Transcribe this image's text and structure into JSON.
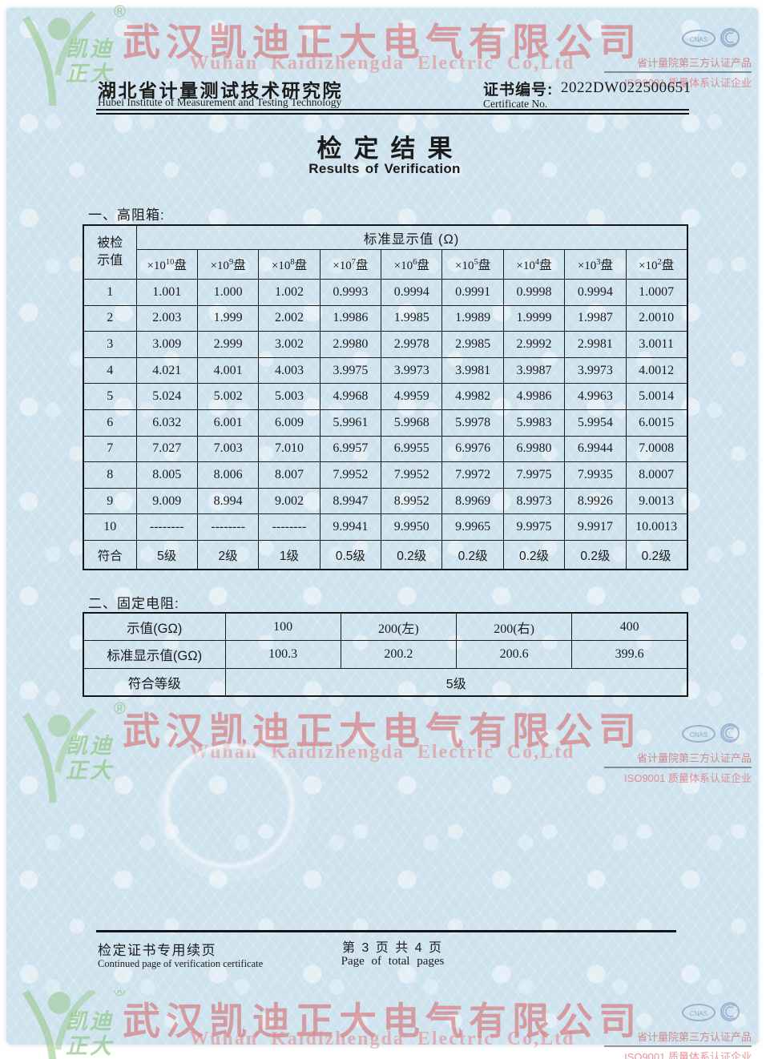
{
  "watermark": {
    "company_cn": "武汉凯迪正大电气有限公司",
    "company_en": "Wuhan Kaidizhengda Electric Co,Ltd",
    "logo_text_line1": "凯迪",
    "logo_text_line2": "正大",
    "reg_mark": "®",
    "badge_line1": "省计量院第三方认证产品",
    "badge_line2": "ISO9001 质量体系认证企业",
    "badge_logo1": "CNAS",
    "badge_logo2": "CCC"
  },
  "header": {
    "institute_cn": "湖北省计量测试技术研究院",
    "institute_en": "Hubei Institute of Measurement and Testing Technology",
    "cert_label_cn": "证书编号:",
    "cert_number": "2022DW022500651",
    "cert_label_en": "Certificate No."
  },
  "title": {
    "cn": "检定结果",
    "en": "Results of Verification"
  },
  "section1": {
    "label": "一、高阻箱:",
    "table": {
      "stub_line1": "被检",
      "stub_line2": "示值",
      "span_header": "标准显示值 (Ω)",
      "dial_base": "×10",
      "dial_suffix": "盘",
      "dial_exponents": [
        "10",
        "9",
        "8",
        "7",
        "6",
        "5",
        "4",
        "3",
        "2"
      ],
      "rows": [
        {
          "label": "1",
          "values": [
            "1.001",
            "1.000",
            "1.002",
            "0.9993",
            "0.9994",
            "0.9991",
            "0.9998",
            "0.9994",
            "1.0007"
          ]
        },
        {
          "label": "2",
          "values": [
            "2.003",
            "1.999",
            "2.002",
            "1.9986",
            "1.9985",
            "1.9989",
            "1.9999",
            "1.9987",
            "2.0010"
          ]
        },
        {
          "label": "3",
          "values": [
            "3.009",
            "2.999",
            "3.002",
            "2.9980",
            "2.9978",
            "2.9985",
            "2.9992",
            "2.9981",
            "3.0011"
          ]
        },
        {
          "label": "4",
          "values": [
            "4.021",
            "4.001",
            "4.003",
            "3.9975",
            "3.9973",
            "3.9981",
            "3.9987",
            "3.9973",
            "4.0012"
          ]
        },
        {
          "label": "5",
          "values": [
            "5.024",
            "5.002",
            "5.003",
            "4.9968",
            "4.9959",
            "4.9982",
            "4.9986",
            "4.9963",
            "5.0014"
          ]
        },
        {
          "label": "6",
          "values": [
            "6.032",
            "6.001",
            "6.009",
            "5.9961",
            "5.9968",
            "5.9978",
            "5.9983",
            "5.9954",
            "6.0015"
          ]
        },
        {
          "label": "7",
          "values": [
            "7.027",
            "7.003",
            "7.010",
            "6.9957",
            "6.9955",
            "6.9976",
            "6.9980",
            "6.9944",
            "7.0008"
          ]
        },
        {
          "label": "8",
          "values": [
            "8.005",
            "8.006",
            "8.007",
            "7.9952",
            "7.9952",
            "7.9972",
            "7.9975",
            "7.9935",
            "8.0007"
          ]
        },
        {
          "label": "9",
          "values": [
            "9.009",
            "8.994",
            "9.002",
            "8.9947",
            "8.9952",
            "8.9969",
            "8.9973",
            "8.9926",
            "9.0013"
          ]
        },
        {
          "label": "10",
          "values": [
            "--------",
            "--------",
            "--------",
            "9.9941",
            "9.9950",
            "9.9965",
            "9.9975",
            "9.9917",
            "10.0013"
          ]
        },
        {
          "label": "符合",
          "grade_row": true,
          "values": [
            "5级",
            "2级",
            "1级",
            "0.5级",
            "0.2级",
            "0.2级",
            "0.2级",
            "0.2级",
            "0.2级"
          ]
        }
      ]
    }
  },
  "section2": {
    "label": "二、固定电阻:",
    "table": {
      "rows": [
        {
          "label": "示值(GΩ)",
          "values": [
            "100",
            "200(左)",
            "200(右)",
            "400"
          ]
        },
        {
          "label": "标准显示值(GΩ)",
          "values": [
            "100.3",
            "200.2",
            "200.6",
            "399.6"
          ]
        },
        {
          "label": "符合等级",
          "span": true,
          "values": [
            "5级"
          ]
        }
      ]
    }
  },
  "footer": {
    "left_cn": "检定证书专用续页",
    "left_en": "Continued page of verification certificate",
    "page_cn": "第 3 页 共 4 页",
    "page_en": "Page of total pages"
  },
  "colors": {
    "page_blue": "#cfe3ee",
    "watermark_red": "#d85454",
    "watermark_pink": "#e88484",
    "logo_green": "#96c88c",
    "table_border": "#1d1d1d",
    "text": "#1b1b1b"
  }
}
